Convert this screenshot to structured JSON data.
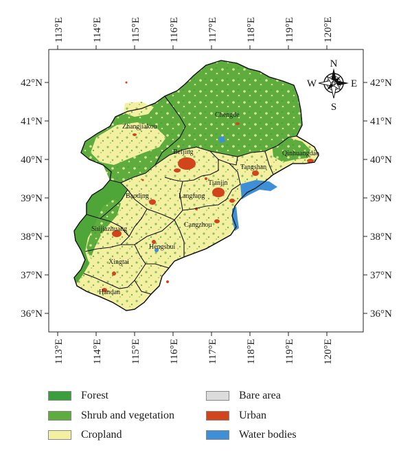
{
  "map": {
    "lon_ticks": [
      "113°E",
      "114°E",
      "115°E",
      "116°E",
      "117°E",
      "118°E",
      "119°E",
      "120°E"
    ],
    "lat_ticks": [
      "42°N",
      "41°N",
      "40°N",
      "39°N",
      "38°N",
      "37°N",
      "36°N"
    ],
    "cities": {
      "zhangjiakou": "Zhangjiakou",
      "chengde": "Chengde",
      "beijing": "Beijing",
      "qinhuangdao": "Qinhuangdao",
      "tangshan": "Tangshan",
      "tianjin": "Tianjin",
      "baoding": "Baoding",
      "langfang": "Langfang",
      "cangzhou": "Cangzhou",
      "shijiazhuang": "Shijiazhuang",
      "hengshui": "Hengshui",
      "xingtai": "Xingtai",
      "handan": "Handan"
    },
    "compass": {
      "n": "N",
      "s": "S",
      "e": "E",
      "w": "W"
    }
  },
  "legend": {
    "items": [
      {
        "label": "Forest",
        "color": "#3a9e3a"
      },
      {
        "label": "Shrub and vegetation",
        "color": "#5eac3e"
      },
      {
        "label": "Cropland",
        "color": "#f4f0a2"
      },
      {
        "label": "Bare area",
        "color": "#dcdcdc"
      },
      {
        "label": "Urban",
        "color": "#d2441c"
      },
      {
        "label": "Water bodies",
        "color": "#3f8fd6"
      }
    ]
  }
}
